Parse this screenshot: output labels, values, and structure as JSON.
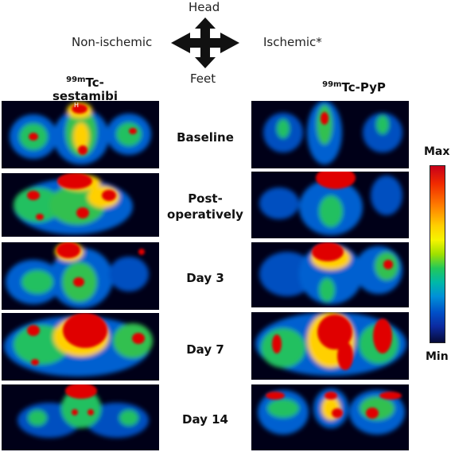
{
  "orientation": {
    "head": "Head",
    "feet": "Feet",
    "left": "Non-ischemic",
    "right": "Ischemic*"
  },
  "columns": {
    "left": {
      "sup": "99m",
      "main": "Tc-",
      "line2": "sestamibi"
    },
    "right": {
      "sup": "99m",
      "main": "Tc-PyP"
    }
  },
  "rows": [
    {
      "label_lines": [
        "Baseline"
      ]
    },
    {
      "label_lines": [
        "Post-",
        "operatively"
      ]
    },
    {
      "label_lines": [
        "Day 3"
      ]
    },
    {
      "label_lines": [
        "Day 7"
      ]
    },
    {
      "label_lines": [
        "Day 14"
      ]
    }
  ],
  "scan_marker": "H",
  "colorbar": {
    "max": "Max",
    "min": "Min"
  },
  "colors": {
    "background_scan": "#000018",
    "hot": "#e00000",
    "warm": "#ffe000",
    "mid": "#20c070",
    "cool": "#0070e0"
  }
}
